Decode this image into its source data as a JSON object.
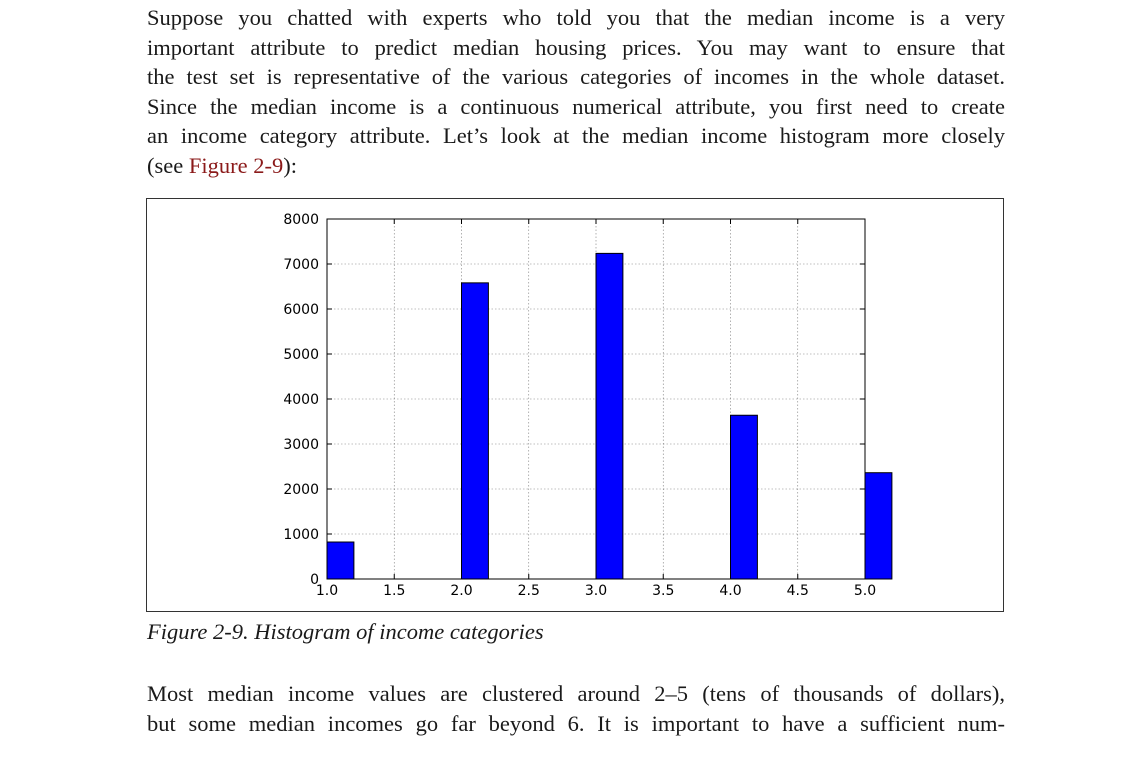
{
  "intro": {
    "lines": [
      "Suppose you chatted with experts who told you that the median income is a very",
      "important attribute to predict median housing prices. You may want to ensure that",
      "the test set is representative of the various categories of incomes in the whole dataset.",
      "Since the median income is a continuous numerical attribute, you first need to create",
      "an income category attribute. Let’s look at the median income histogram more closely"
    ],
    "last_prefix": "(see ",
    "xref": "Figure 2-9",
    "last_suffix": "):"
  },
  "caption": "Figure 2-9. Histogram of income categories",
  "outro": {
    "lines": [
      "Most median income values are clustered around 2–5 (tens of thousands of dollars),",
      "but some median incomes go far beyond 6. It is important to have a sufficient num-"
    ]
  },
  "colors": {
    "bar": "#0000ff",
    "xref": "#8b1a1a"
  },
  "chart_data": {
    "type": "bar",
    "x": [
      1.0,
      2.0,
      3.0,
      4.0,
      5.0
    ],
    "values": [
      822,
      6581,
      7236,
      3639,
      2362
    ],
    "bar_width": 0.2,
    "xlim": [
      1.0,
      5.0
    ],
    "ylim": [
      0,
      8000
    ],
    "xticks": [
      "1.0",
      "1.5",
      "2.0",
      "2.5",
      "3.0",
      "3.5",
      "4.0",
      "4.5",
      "5.0"
    ],
    "yticks": [
      "0",
      "1000",
      "2000",
      "3000",
      "4000",
      "5000",
      "6000",
      "7000",
      "8000"
    ],
    "grid": true,
    "title": "",
    "xlabel": "",
    "ylabel": ""
  }
}
